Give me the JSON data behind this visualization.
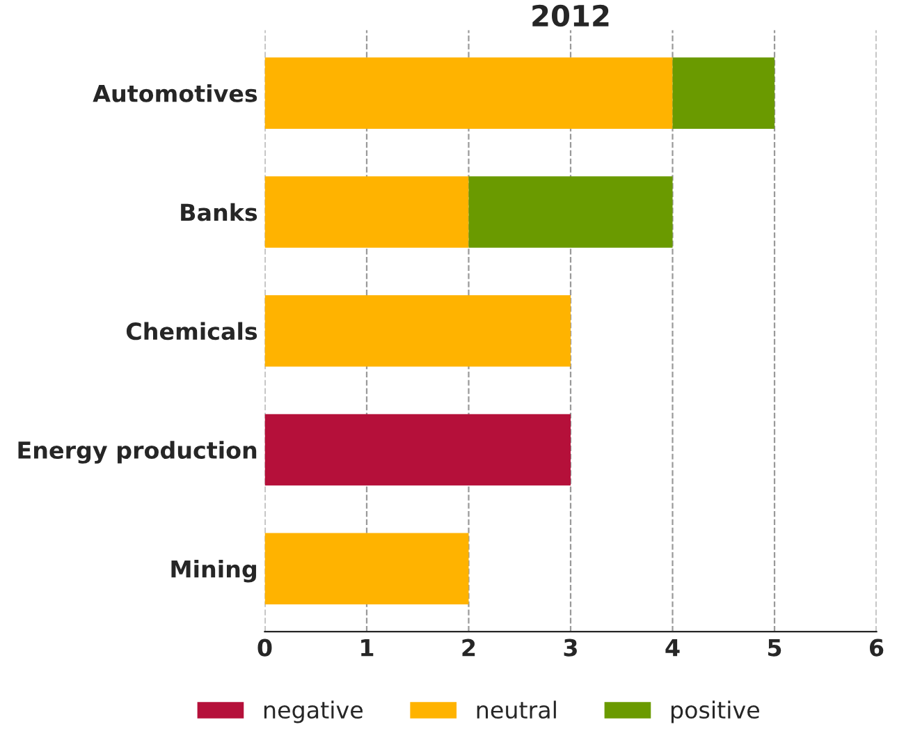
{
  "chart_data": {
    "type": "bar",
    "orientation": "horizontal",
    "stacked": true,
    "title": "2012",
    "categories": [
      "Automotives",
      "Banks",
      "Chemicals",
      "Energy production",
      "Mining"
    ],
    "series": [
      {
        "name": "negative",
        "color": "#b5103a",
        "values": [
          0,
          0,
          0,
          3,
          0
        ]
      },
      {
        "name": "neutral",
        "color": "#ffb300",
        "values": [
          4,
          2,
          3,
          0,
          2
        ]
      },
      {
        "name": "positive",
        "color": "#6a9a00",
        "values": [
          1,
          2,
          0,
          0,
          0
        ]
      }
    ],
    "xlim": [
      0,
      6
    ],
    "xticks": [
      0,
      1,
      2,
      3,
      4,
      5,
      6
    ],
    "grid": "x",
    "legend": "bottom"
  }
}
